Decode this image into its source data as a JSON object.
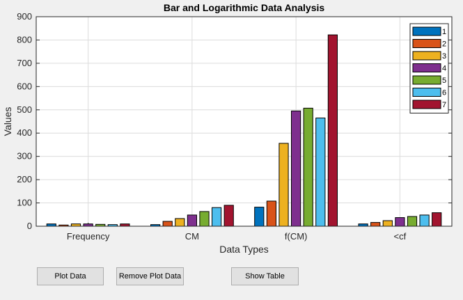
{
  "buttons": {
    "plot_label": "Plot Data",
    "remove_label": "Remove Plot Data",
    "table_label": "Show Table"
  },
  "colors": {
    "series": [
      "#0072bd",
      "#d95319",
      "#edb120",
      "#7e2f8e",
      "#77ac30",
      "#4dbeee",
      "#a2142f"
    ],
    "axes_bg": "#ffffff",
    "grid": "#dcdcdc"
  },
  "chart_data": {
    "type": "bar",
    "title": "Bar and Logarithmic Data Analysis",
    "xlabel": "Data Types",
    "ylabel": "Values",
    "categories": [
      "Frequency",
      "CM",
      "f(CM)",
      "<cf"
    ],
    "ylim": [
      0,
      900
    ],
    "yticks": [
      0,
      100,
      200,
      300,
      400,
      500,
      600,
      700,
      800,
      900
    ],
    "grid": true,
    "legend_position": "top-right",
    "series": [
      {
        "name": "1",
        "values": [
          10,
          7,
          82,
          10
        ]
      },
      {
        "name": "2",
        "values": [
          5,
          21,
          108,
          16
        ]
      },
      {
        "name": "3",
        "values": [
          10,
          33,
          356,
          24
        ]
      },
      {
        "name": "4",
        "values": [
          10,
          48,
          495,
          37
        ]
      },
      {
        "name": "5",
        "values": [
          8,
          63,
          507,
          42
        ]
      },
      {
        "name": "6",
        "values": [
          7,
          80,
          465,
          48
        ]
      },
      {
        "name": "7",
        "values": [
          10,
          90,
          822,
          58
        ]
      }
    ]
  }
}
